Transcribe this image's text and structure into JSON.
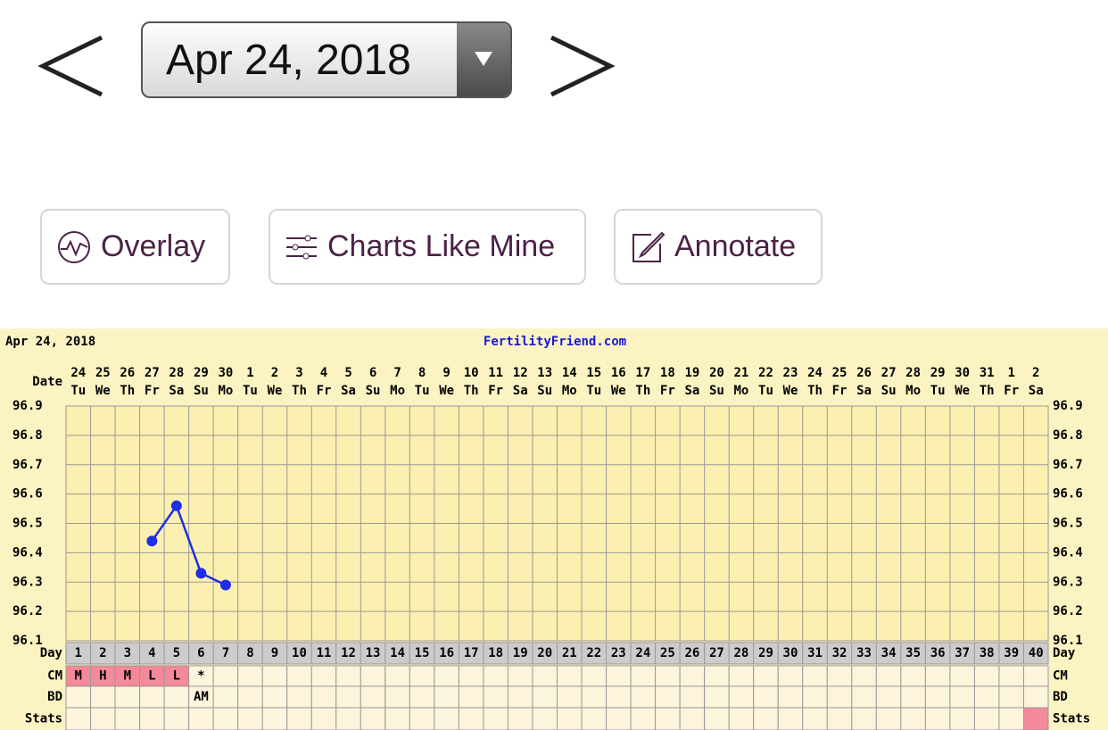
{
  "date_picker": {
    "label": "Apr 24, 2018"
  },
  "buttons": [
    {
      "label": "Overlay"
    },
    {
      "label": "Charts Like Mine"
    },
    {
      "label": "Annotate"
    }
  ],
  "chart_data": {
    "type": "line",
    "date": "Apr 24, 2018",
    "title": "FertilityFriend.com",
    "row_labels": {
      "date": "Date",
      "day": "Day",
      "cm": "CM",
      "bd": "BD",
      "stats": "Stats"
    },
    "categories": [
      24,
      25,
      26,
      27,
      28,
      29,
      30,
      1,
      2,
      3,
      4,
      5,
      6,
      7,
      8,
      9,
      10,
      11,
      12,
      13,
      14,
      15,
      16,
      17,
      18,
      19,
      20,
      21,
      22,
      23,
      24,
      25,
      26,
      27,
      28,
      29,
      30,
      31,
      1,
      2
    ],
    "weekdays": [
      "Tu",
      "We",
      "Th",
      "Fr",
      "Sa",
      "Su",
      "Mo",
      "Tu",
      "We",
      "Th",
      "Fr",
      "Sa",
      "Su",
      "Mo",
      "Tu",
      "We",
      "Th",
      "Fr",
      "Sa",
      "Su",
      "Mo",
      "Tu",
      "We",
      "Th",
      "Fr",
      "Sa",
      "Su",
      "Mo",
      "Tu",
      "We",
      "Th",
      "Fr",
      "Sa",
      "Su",
      "Mo",
      "Tu",
      "We",
      "Th",
      "Fr",
      "Sa"
    ],
    "days": [
      1,
      2,
      3,
      4,
      5,
      6,
      7,
      8,
      9,
      10,
      11,
      12,
      13,
      14,
      15,
      16,
      17,
      18,
      19,
      20,
      21,
      22,
      23,
      24,
      25,
      26,
      27,
      28,
      29,
      30,
      31,
      32,
      33,
      34,
      35,
      36,
      37,
      38,
      39,
      40
    ],
    "series": [
      {
        "color": "#1f2ee6",
        "values": [
          null,
          null,
          null,
          96.44,
          96.56,
          96.33,
          96.29,
          null,
          null,
          null,
          null,
          null,
          null,
          null,
          null,
          null,
          null,
          null,
          null,
          null,
          null,
          null,
          null,
          null,
          null,
          null,
          null,
          null,
          null,
          null,
          null,
          null,
          null,
          null,
          null,
          null,
          null,
          null,
          null,
          null
        ]
      }
    ],
    "cm": [
      "M",
      "H",
      "M",
      "L",
      "L",
      "*",
      null,
      null,
      null,
      null,
      null,
      null,
      null,
      null,
      null,
      null,
      null,
      null,
      null,
      null,
      null,
      null,
      null,
      null,
      null,
      null,
      null,
      null,
      null,
      null,
      null,
      null,
      null,
      null,
      null,
      null,
      null,
      null,
      null,
      null
    ],
    "bd": [
      null,
      null,
      null,
      null,
      null,
      "AM",
      null,
      null,
      null,
      null,
      null,
      null,
      null,
      null,
      null,
      null,
      null,
      null,
      null,
      null,
      null,
      null,
      null,
      null,
      null,
      null,
      null,
      null,
      null,
      null,
      null,
      null,
      null,
      null,
      null,
      null,
      null,
      null,
      null,
      null
    ],
    "cm_highlight_days": [
      1,
      2,
      3,
      4,
      5
    ],
    "stats_highlight_days": [
      40
    ],
    "highlight_color": "#f4899a",
    "ylim": [
      96.1,
      96.9
    ],
    "yticks": [
      96.1,
      96.2,
      96.3,
      96.4,
      96.5,
      96.6,
      96.7,
      96.8,
      96.9
    ],
    "grid": true
  }
}
